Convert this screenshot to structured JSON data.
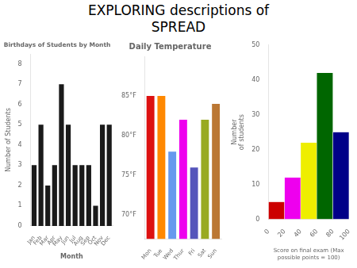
{
  "title": [
    "EXPLORING descriptions of",
    "SPREAD"
  ],
  "chart_data": [
    {
      "type": "bar",
      "title": "Birthdays of Students by Month",
      "xlabel": "Month",
      "ylabel": "Number of Students",
      "categories": [
        "Jan",
        "Feb",
        "Mar",
        "Apr",
        "May",
        "Jun",
        "Jul",
        "Aug",
        "Sep",
        "Oct",
        "Nov",
        "Dec"
      ],
      "values": [
        3,
        5,
        2,
        3,
        7,
        5,
        3,
        3,
        3,
        1,
        5,
        5
      ],
      "color": "#1a1a1a",
      "ylim": [
        0,
        8.5
      ],
      "yticks": [
        0,
        1,
        2,
        3,
        4,
        5,
        6,
        7,
        8
      ],
      "grid": false
    },
    {
      "type": "bar",
      "title": "Daily Temperature",
      "categories": [
        "Mon",
        "Tue",
        "Wed",
        "Thur",
        "Fri",
        "Sat",
        "Sun"
      ],
      "values": [
        85,
        85,
        78,
        82,
        76,
        82,
        84
      ],
      "colors": [
        "#dd1111",
        "#ff8800",
        "#6699ee",
        "#ee00ee",
        "#5555bb",
        "#99aa22",
        "#bb7733"
      ],
      "ylim": [
        67,
        90
      ],
      "yticks": [
        {
          "value": 70,
          "label": "70°F"
        },
        {
          "value": 75,
          "label": "75°F"
        },
        {
          "value": 80,
          "label": "80°F"
        },
        {
          "value": 85,
          "label": "85°F"
        }
      ],
      "grid": false
    },
    {
      "type": "histogram",
      "xlabel": "Score on final exam (Max possible points = 100)",
      "ylabel": [
        "Number",
        "of students"
      ],
      "bins": [
        0,
        20,
        40,
        60,
        80,
        100
      ],
      "values": [
        5,
        12,
        22,
        42,
        25
      ],
      "colors": [
        "#cc0000",
        "#ee00ee",
        "#eeee00",
        "#006600",
        "#000088"
      ],
      "xlim": [
        0,
        100
      ],
      "xticks": [
        0,
        20,
        40,
        60,
        80,
        100
      ],
      "ylim": [
        0,
        50
      ],
      "yticks": [
        0,
        10,
        20,
        30,
        40,
        50
      ],
      "grid": false
    }
  ]
}
